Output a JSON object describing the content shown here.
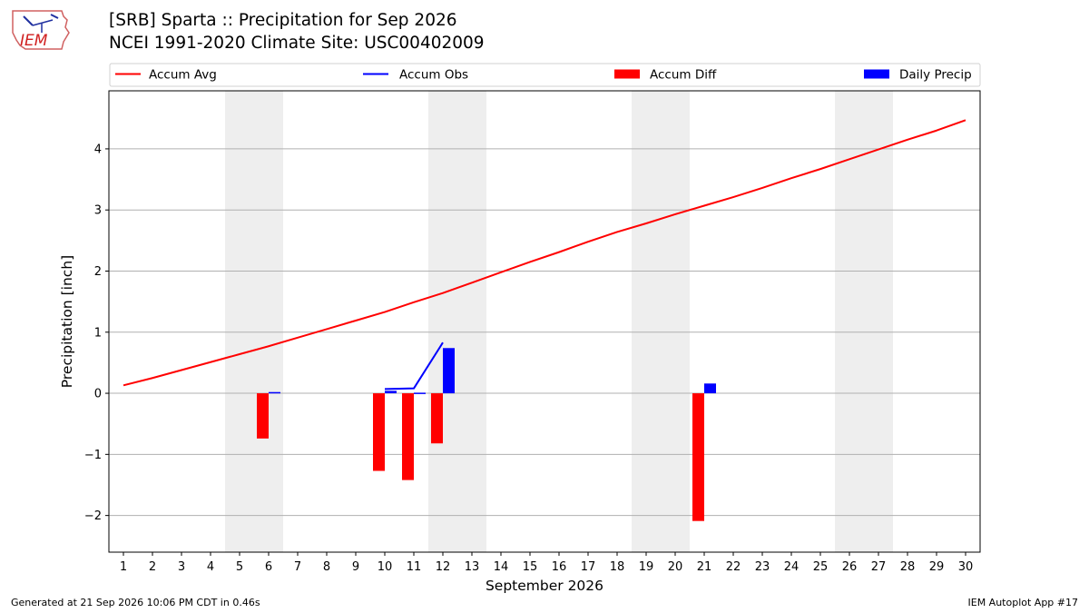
{
  "header": {
    "title_line1": "[SRB] Sparta :: Precipitation for Sep 2026",
    "title_line2": "NCEI 1991-2020 Climate Site: USC00402009"
  },
  "logo": {
    "text": "IEM",
    "icon": "iem-logo-icon"
  },
  "footer": {
    "generated": "Generated at 21 Sep 2026 10:06 PM CDT in 0.46s",
    "app": "IEM Autoplot App #17"
  },
  "colors": {
    "accum_avg": "#ff0000",
    "accum_obs": "#0000ff",
    "accum_diff": "#ff0000",
    "daily_precip": "#0000ff",
    "weekend_shade": "#eeeeee",
    "grid": "#b0b0b0"
  },
  "chart_data": {
    "type": "bar",
    "xlabel": "September 2026",
    "ylabel": "Precipitation [inch]",
    "x": [
      1,
      2,
      3,
      4,
      5,
      6,
      7,
      8,
      9,
      10,
      11,
      12,
      13,
      14,
      15,
      16,
      17,
      18,
      19,
      20,
      21,
      22,
      23,
      24,
      25,
      26,
      27,
      28,
      29,
      30
    ],
    "xlim": [
      0.5,
      30.5
    ],
    "ylim": [
      -2.6,
      4.95
    ],
    "yticks": [
      -2,
      -1,
      0,
      1,
      2,
      3,
      4
    ],
    "ytick_labels": [
      "−2",
      "−1",
      "0",
      "1",
      "2",
      "3",
      "4"
    ],
    "grid": "horizontal",
    "legend_position": "top, above plot",
    "weekend_shading": [
      [
        4.5,
        6.5
      ],
      [
        11.5,
        13.5
      ],
      [
        18.5,
        20.5
      ],
      [
        25.5,
        27.5
      ]
    ],
    "series": [
      {
        "name": "Accum Avg",
        "kind": "line",
        "x": [
          1,
          2,
          3,
          4,
          5,
          6,
          7,
          8,
          9,
          10,
          11,
          12,
          13,
          14,
          15,
          16,
          17,
          18,
          19,
          20,
          21,
          22,
          23,
          24,
          25,
          26,
          27,
          28,
          29,
          30
        ],
        "values": [
          0.13,
          0.25,
          0.38,
          0.51,
          0.64,
          0.77,
          0.91,
          1.05,
          1.19,
          1.33,
          1.49,
          1.64,
          1.81,
          1.98,
          2.15,
          2.31,
          2.48,
          2.64,
          2.78,
          2.93,
          3.07,
          3.21,
          3.36,
          3.52,
          3.67,
          3.83,
          3.99,
          4.15,
          4.3,
          4.47
        ]
      },
      {
        "name": "Accum Obs",
        "kind": "line",
        "x": [
          10,
          11,
          12
        ],
        "values": [
          0.07,
          0.08,
          0.83
        ]
      },
      {
        "name": "Accum Diff",
        "kind": "bar",
        "x": [
          6,
          10,
          11,
          12,
          21
        ],
        "values": [
          -0.74,
          -1.27,
          -1.42,
          -0.82,
          -2.09
        ]
      },
      {
        "name": "Daily Precip",
        "kind": "bar",
        "x": [
          6,
          10,
          11,
          12,
          21
        ],
        "values": [
          0.02,
          0.04,
          0.01,
          0.74,
          0.16
        ]
      }
    ]
  }
}
